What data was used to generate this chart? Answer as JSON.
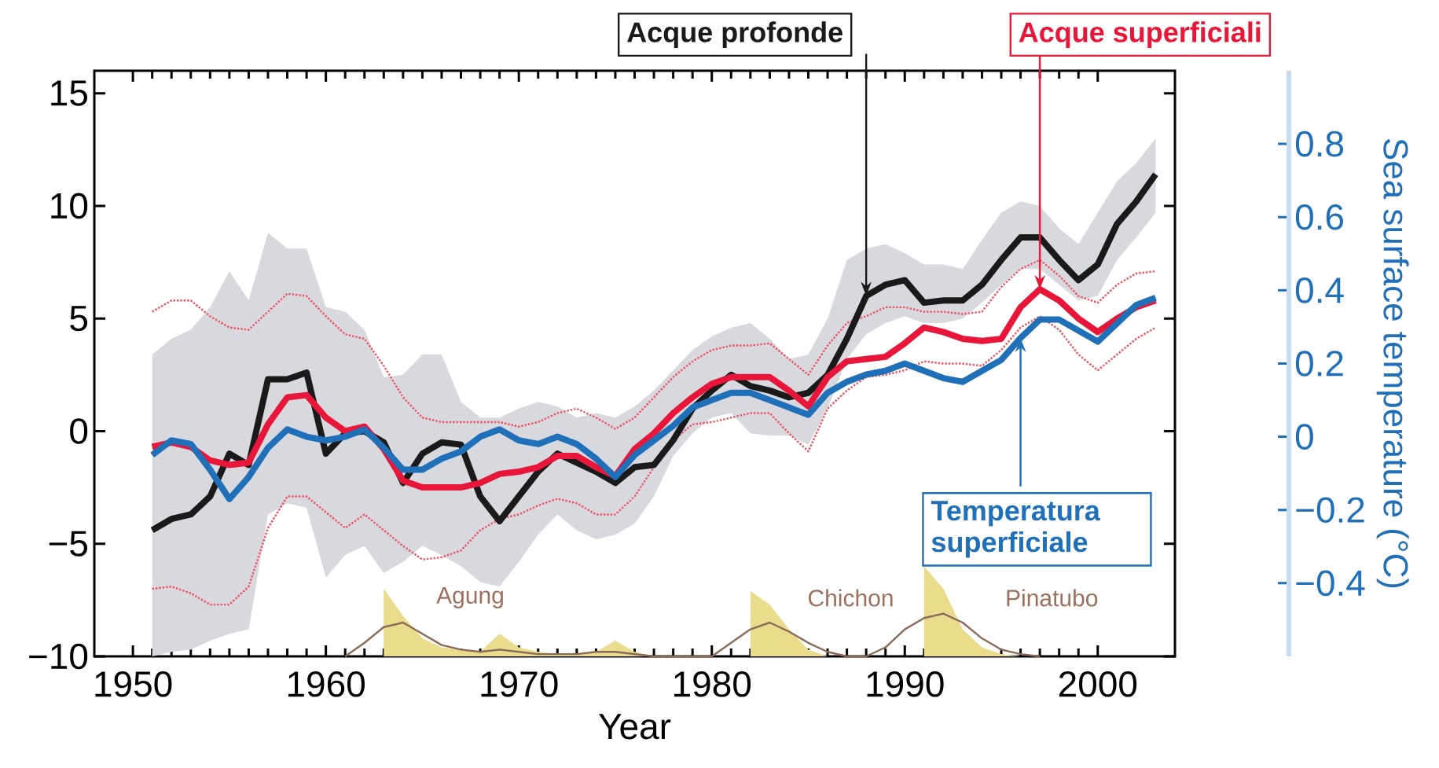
{
  "chart_data": {
    "type": "line",
    "xlabel": "Year",
    "y2label": "Sea surface temperature (°C)",
    "x": [
      1951,
      1952,
      1953,
      1954,
      1955,
      1956,
      1957,
      1958,
      1959,
      1960,
      1961,
      1962,
      1963,
      1964,
      1965,
      1966,
      1967,
      1968,
      1969,
      1970,
      1971,
      1972,
      1973,
      1974,
      1975,
      1976,
      1977,
      1978,
      1979,
      1980,
      1981,
      1982,
      1983,
      1984,
      1985,
      1986,
      1987,
      1988,
      1989,
      1990,
      1991,
      1992,
      1993,
      1994,
      1995,
      1996,
      1997,
      1998,
      1999,
      2000,
      2001,
      2002,
      2003
    ],
    "xlim": [
      1948,
      2004
    ],
    "xticks": [
      1950,
      1960,
      1970,
      1980,
      1990,
      2000
    ],
    "ylim": [
      -10,
      16
    ],
    "yticks": [
      {
        "value": -10,
        "label": "−10"
      },
      {
        "value": -5,
        "label": "−5"
      },
      0,
      5,
      10,
      15
    ],
    "y2lim": [
      -0.6,
      1.0
    ],
    "y2ticks": [
      {
        "value": -0.4,
        "label": "−0.4"
      },
      {
        "value": -0.2,
        "label": "−0.2"
      },
      0,
      0.2,
      0.4,
      0.6,
      0.8
    ],
    "series": [
      {
        "type": "area",
        "color": "#e9dc8c",
        "x": [
          1963,
          1963,
          1964,
          1965,
          1966,
          1967,
          1968,
          1969,
          1970,
          1971,
          1972,
          1973,
          1974,
          1975,
          1976,
          1977,
          1982,
          1982,
          1983,
          1984,
          1985,
          1986,
          1991,
          1991,
          1992,
          1993,
          1994,
          1995,
          1996
        ],
        "values": [
          -10,
          -7.0,
          -8.2,
          -9.2,
          -9.6,
          -9.7,
          -9.8,
          -9.0,
          -9.6,
          -9.8,
          -9.9,
          -9.9,
          -9.8,
          -9.3,
          -9.8,
          -10,
          -10,
          -7.1,
          -7.7,
          -8.8,
          -9.7,
          -10,
          -10,
          -6.0,
          -7.0,
          -8.8,
          -9.6,
          -9.9,
          -10
        ]
      },
      {
        "type": "line",
        "color": "#8c6a5a",
        "x": [
          1961,
          1962,
          1963,
          1964,
          1965,
          1966,
          1967,
          1968,
          1969,
          1970,
          1971,
          1972,
          1973,
          1974,
          1975,
          1976,
          1977,
          1978,
          1979,
          1980,
          1981,
          1982,
          1983,
          1984,
          1985,
          1986,
          1987,
          1988,
          1989,
          1990,
          1991,
          1992,
          1993,
          1994,
          1995,
          1996,
          1997
        ],
        "values": [
          -10,
          -9.4,
          -8.7,
          -8.5,
          -9.0,
          -9.5,
          -9.7,
          -9.8,
          -9.7,
          -9.8,
          -9.9,
          -9.9,
          -9.9,
          -9.8,
          -9.8,
          -9.9,
          -10,
          -10,
          -10,
          -10,
          -9.4,
          -8.8,
          -8.5,
          -8.9,
          -9.4,
          -9.8,
          -10,
          -10,
          -9.6,
          -8.8,
          -8.3,
          -8.1,
          -8.5,
          -9.2,
          -9.7,
          -9.9,
          -10
        ]
      },
      {
        "type": "line",
        "color": "#f0505f",
        "line_style": "dotted",
        "values": [
          5.3,
          5.8,
          5.8,
          5.1,
          4.6,
          4.5,
          5.3,
          6.1,
          6.0,
          5.1,
          4.3,
          4.1,
          2.9,
          1.5,
          0.6,
          0.4,
          0.4,
          0.4,
          0.4,
          0.2,
          0.4,
          0.8,
          1.0,
          0.6,
          0.1,
          0.6,
          1.5,
          2.4,
          3.1,
          3.6,
          3.8,
          3.8,
          3.9,
          3.2,
          2.5,
          3.8,
          4.8,
          5.1,
          5.5,
          5.5,
          5.3,
          5.3,
          5.2,
          5.3,
          6.4,
          7.2,
          7.6,
          6.9,
          6.0,
          5.7,
          6.5,
          7.0,
          7.1
        ]
      },
      {
        "type": "line",
        "color": "#f0505f",
        "line_style": "dotted",
        "values": [
          -7.0,
          -6.9,
          -7.2,
          -7.7,
          -7.7,
          -6.9,
          -4.3,
          -2.9,
          -2.9,
          -3.6,
          -4.3,
          -3.7,
          -4.4,
          -5.1,
          -5.7,
          -5.6,
          -5.3,
          -4.4,
          -3.9,
          -3.7,
          -3.3,
          -3.0,
          -3.2,
          -3.7,
          -3.7,
          -2.9,
          -1.6,
          -0.4,
          0.3,
          0.4,
          0.6,
          0.8,
          0.8,
          -0.1,
          -0.9,
          1.0,
          1.8,
          2.4,
          2.5,
          2.7,
          3.1,
          3.0,
          3.0,
          2.9,
          3.6,
          4.6,
          5.1,
          4.5,
          3.4,
          2.7,
          3.4,
          4.1,
          4.6
        ]
      },
      {
        "name": "Acque profonde",
        "color": "#1a1a1a",
        "values": [
          -4.4,
          -3.9,
          -3.7,
          -2.9,
          -1.0,
          -1.5,
          2.3,
          2.3,
          2.6,
          -1.0,
          -0.1,
          0.0,
          -0.5,
          -2.3,
          -1.0,
          -0.5,
          -0.6,
          -2.9,
          -4.0,
          -2.9,
          -1.8,
          -1.0,
          -1.4,
          -1.8,
          -2.3,
          -1.6,
          -1.5,
          -0.4,
          1.0,
          1.8,
          2.5,
          2.0,
          1.8,
          1.5,
          1.7,
          2.5,
          4.1,
          6.0,
          6.5,
          6.7,
          5.7,
          5.8,
          5.8,
          6.5,
          7.6,
          8.6,
          8.6,
          7.6,
          6.7,
          7.4,
          9.2,
          10.2,
          11.4
        ],
        "lower": [
          -10,
          -9.8,
          -9.7,
          -9.3,
          -9.0,
          -8.8,
          -3.7,
          -3.2,
          -3.4,
          -6.5,
          -5.5,
          -5.1,
          -6.3,
          -5.8,
          -5.1,
          -5.5,
          -6.0,
          -6.7,
          -6.9,
          -5.8,
          -4.6,
          -3.7,
          -4.4,
          -4.8,
          -4.6,
          -4.1,
          -2.9,
          -1.1,
          -0.1,
          0.6,
          0.8,
          -0.1,
          -0.2,
          -0.2,
          -0.6,
          1.0,
          3.2,
          4.3,
          4.8,
          5.1,
          4.8,
          4.8,
          5.0,
          5.7,
          6.5,
          7.2,
          7.2,
          6.5,
          5.8,
          6.0,
          7.6,
          8.6,
          9.7
        ],
        "upper": [
          3.4,
          4.1,
          4.5,
          5.5,
          7.1,
          5.8,
          8.8,
          8.1,
          8.1,
          5.5,
          5.3,
          4.5,
          2.4,
          2.5,
          3.4,
          3.4,
          1.3,
          0.6,
          0.6,
          1.0,
          1.3,
          1.1,
          0.6,
          0.8,
          0.6,
          1.1,
          1.8,
          2.7,
          3.6,
          4.2,
          4.6,
          4.8,
          4.1,
          3.2,
          3.4,
          5.0,
          7.6,
          8.1,
          8.3,
          7.9,
          7.4,
          7.4,
          7.2,
          8.5,
          9.7,
          10.2,
          10.0,
          9.0,
          8.3,
          9.7,
          11.1,
          11.9,
          13.0
        ]
      },
      {
        "name": "Acque superficiali",
        "color": "#e8173a",
        "values": [
          -0.7,
          -0.5,
          -0.7,
          -1.3,
          -1.5,
          -1.4,
          0.3,
          1.5,
          1.6,
          0.6,
          0,
          0.2,
          -0.8,
          -2.2,
          -2.5,
          -2.5,
          -2.5,
          -2.3,
          -1.9,
          -1.8,
          -1.6,
          -1.1,
          -1.1,
          -1.6,
          -2.0,
          -0.8,
          -0.1,
          0.8,
          1.5,
          2.1,
          2.4,
          2.4,
          2.4,
          1.8,
          1.1,
          2.4,
          3.1,
          3.2,
          3.3,
          3.9,
          4.6,
          4.4,
          4.1,
          4.0,
          4.1,
          5.5,
          6.3,
          5.8,
          5.0,
          4.4,
          5.0,
          5.5,
          5.8
        ]
      },
      {
        "name": "Temperatura superficiale",
        "color": "#1f70b8",
        "axis": "y2",
        "values": [
          -0.05,
          -0.01,
          -0.02,
          -0.09,
          -0.17,
          -0.11,
          -0.03,
          0.02,
          0,
          -0.01,
          0,
          0.02,
          -0.03,
          -0.09,
          -0.09,
          -0.06,
          -0.04,
          0,
          0.02,
          -0.01,
          -0.02,
          0,
          -0.02,
          -0.06,
          -0.11,
          -0.05,
          -0.01,
          0.03,
          0.08,
          0.1,
          0.12,
          0.12,
          0.1,
          0.08,
          0.06,
          0.12,
          0.15,
          0.17,
          0.18,
          0.2,
          0.18,
          0.16,
          0.15,
          0.18,
          0.21,
          0.27,
          0.32,
          0.32,
          0.29,
          0.26,
          0.31,
          0.36,
          0.38
        ]
      }
    ],
    "annotations": [
      "Agung",
      "Chichon",
      "Pinatubo"
    ],
    "grid": false
  }
}
